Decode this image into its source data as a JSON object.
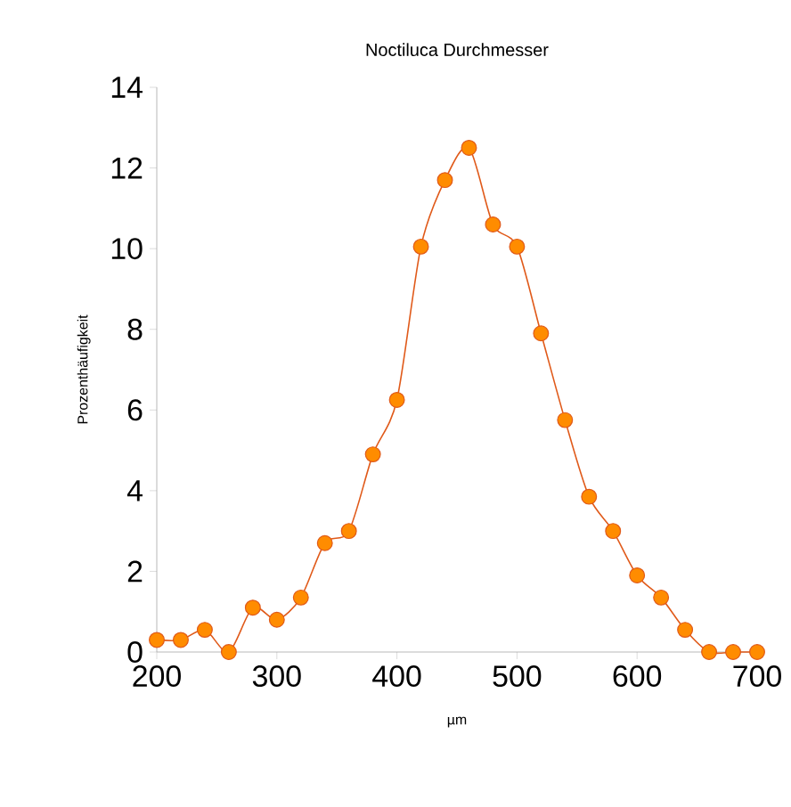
{
  "chart_data": {
    "type": "line",
    "title": "Noctiluca Durchmesser",
    "xlabel": "µm",
    "ylabel": "Prozenthäufigkeit",
    "x": [
      200,
      220,
      240,
      260,
      280,
      300,
      320,
      340,
      360,
      380,
      400,
      420,
      440,
      460,
      480,
      500,
      520,
      540,
      560,
      580,
      600,
      620,
      640,
      660,
      680,
      700
    ],
    "series": [
      {
        "color": "#e05a1a",
        "values": [
          0.3,
          0.3,
          0.55,
          0.0,
          1.1,
          0.8,
          1.35,
          2.7,
          3.0,
          4.9,
          6.25,
          10.05,
          11.7,
          12.5,
          10.6,
          10.05,
          7.9,
          5.75,
          3.85,
          3.0,
          1.9,
          1.35,
          0.55,
          0.0,
          0.0,
          0.0
        ]
      }
    ],
    "xlim": [
      200,
      700
    ],
    "ylim": [
      0,
      14
    ],
    "xticks": [
      200,
      300,
      400,
      500,
      600,
      700
    ],
    "yticks": [
      0,
      2,
      4,
      6,
      8,
      10,
      12,
      14
    ],
    "marker": "circle",
    "grid": false
  }
}
